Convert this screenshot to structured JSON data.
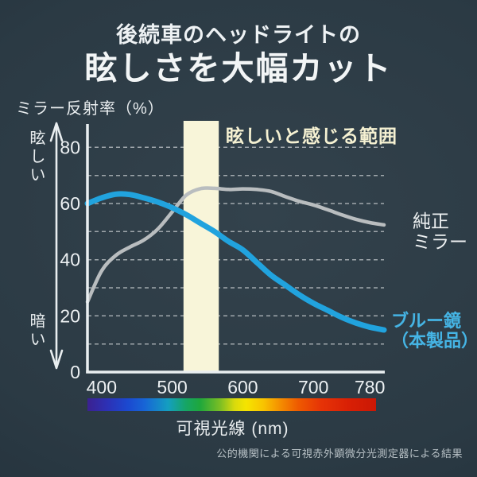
{
  "header": {
    "line1": "後続車のヘッドライトの",
    "line2": "眩しさを大幅カット"
  },
  "axis_scale": {
    "top_label": "眩しい",
    "bottom_label": "暗い"
  },
  "legend": {
    "standard_mirror": "純正\nミラー",
    "blue_mirror": "ブルー鏡\n（本製品）"
  },
  "footnote": "公的機関による可視赤外顕微分光測定器による結果",
  "colors": {
    "background_dark": "#1f2d37",
    "background_light": "#33424c",
    "blue_line": "#21a3de",
    "blue_label": "#45b4e4",
    "gray_line": "#b9bdbf",
    "band_fill": "#f8f5d9",
    "band_label": "#f5f1d2",
    "axis_white": "#e9eef0"
  },
  "chart_data": {
    "type": "line",
    "title": "ミラー反射率（%）",
    "xlabel": "可視光線 (nm)",
    "ylabel": "ミラー反射率（%）",
    "x_range": [
      380,
      800
    ],
    "ylim": [
      0,
      90
    ],
    "x_ticks": [
      400,
      500,
      600,
      700,
      780
    ],
    "y_ticks": [
      0,
      20,
      40,
      60,
      80
    ],
    "y_grid_interval": 10,
    "grid": "dashed horizontal",
    "legend_position": "right of line ends",
    "glare_band": {
      "label": "眩しいと感じる範囲",
      "from_nm": 516,
      "to_nm": 566,
      "color": "#f8f5d9"
    },
    "x": [
      380,
      400,
      420,
      440,
      460,
      480,
      500,
      520,
      540,
      560,
      580,
      600,
      620,
      640,
      660,
      680,
      700,
      720,
      740,
      760,
      780,
      800
    ],
    "series": [
      {
        "name": "純正ミラー",
        "color": "#b9bdbf",
        "values": [
          25,
          36,
          41.5,
          44.5,
          47,
          51,
          57,
          63,
          65.3,
          65.4,
          65,
          65.2,
          65,
          64.3,
          62.5,
          60.8,
          59.5,
          57.8,
          56,
          54.4,
          53.2,
          52.4
        ]
      },
      {
        "name": "ブルー鏡（本製品）",
        "color": "#21a3de",
        "values": [
          60,
          62,
          63.3,
          63.2,
          62,
          60.5,
          58.5,
          56,
          53,
          50,
          46.5,
          43.5,
          39,
          34.5,
          31,
          27.5,
          24.5,
          22,
          19.5,
          17.5,
          16,
          15
        ]
      }
    ]
  }
}
